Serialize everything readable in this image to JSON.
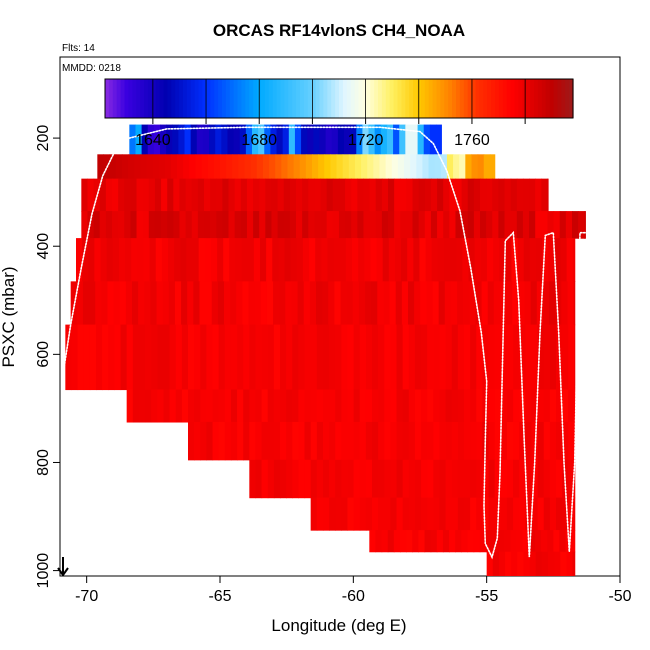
{
  "chart_data": {
    "type": "heatmap",
    "title": "ORCAS RF14vlonS CH4_NOAA",
    "flights_label": "Flts: 14",
    "date_label": "MMDD: 0218",
    "xlabel": "Longitude (deg E)",
    "ylabel": "PSXC (mbar)",
    "xlim": [
      -71,
      -50
    ],
    "ylim": [
      1010,
      50
    ],
    "x_ticks": [
      -70,
      -65,
      -60,
      -55,
      -50
    ],
    "x_tick_labels": [
      "-70",
      "-65",
      "-60",
      "-55",
      "-50"
    ],
    "y_ticks": [
      200,
      400,
      600,
      800,
      1000
    ],
    "y_tick_labels": [
      "200",
      "400",
      "600",
      "800",
      "1000"
    ],
    "colorbar": {
      "min": 1622,
      "max": 1798,
      "ticks": [
        1640,
        1680,
        1720,
        1760
      ],
      "tick_labels": [
        "1640",
        "1680",
        "1720",
        "1760"
      ],
      "segment_lines": [
        1640,
        1660,
        1680,
        1700,
        1720,
        1740,
        1760,
        1780
      ]
    },
    "colormap": [
      {
        "v": 1622,
        "c": "#8A2BE2"
      },
      {
        "v": 1630,
        "c": "#3A00E0"
      },
      {
        "v": 1645,
        "c": "#0000B0"
      },
      {
        "v": 1660,
        "c": "#0030FF"
      },
      {
        "v": 1680,
        "c": "#00AAFF"
      },
      {
        "v": 1700,
        "c": "#66D0FF"
      },
      {
        "v": 1712,
        "c": "#E0F6FF"
      },
      {
        "v": 1720,
        "c": "#FFFFE0"
      },
      {
        "v": 1730,
        "c": "#FFF060"
      },
      {
        "v": 1740,
        "c": "#FFC800"
      },
      {
        "v": 1752,
        "c": "#FF8000"
      },
      {
        "v": 1762,
        "c": "#FF3000"
      },
      {
        "v": 1775,
        "c": "#FF0000"
      },
      {
        "v": 1790,
        "c": "#C00000"
      },
      {
        "v": 1798,
        "c": "#9E1A1A"
      }
    ],
    "bands": [
      {
        "p_top": 175,
        "p_bot": 230,
        "x_min": -68.4,
        "x_max": -56.7,
        "profile": "upper"
      },
      {
        "p_top": 230,
        "p_bot": 275,
        "x_min": -69.6,
        "x_max": -54.7,
        "profile": "gradient"
      },
      {
        "p_top": 275,
        "p_bot": 335,
        "x_min": -70.2,
        "x_max": -52.7,
        "profile": "darkred"
      },
      {
        "p_top": 335,
        "p_bot": 385,
        "x_min": -70.2,
        "x_max": -51.3,
        "profile": "red1"
      },
      {
        "p_top": 385,
        "p_bot": 465,
        "x_min": -70.4,
        "x_max": -51.7,
        "profile": "red2"
      },
      {
        "p_top": 465,
        "p_bot": 545,
        "x_min": -70.6,
        "x_max": -51.7,
        "profile": "red2"
      },
      {
        "p_top": 545,
        "p_bot": 665,
        "x_min": -70.8,
        "x_max": -51.7,
        "profile": "red3"
      },
      {
        "p_top": 665,
        "p_bot": 725,
        "x_min": -68.5,
        "x_max": -51.7,
        "profile": "red3"
      },
      {
        "p_top": 725,
        "p_bot": 795,
        "x_min": -66.2,
        "x_max": -51.7,
        "profile": "red3"
      },
      {
        "p_top": 795,
        "p_bot": 865,
        "x_min": -63.9,
        "x_max": -51.7,
        "profile": "red3"
      },
      {
        "p_top": 865,
        "p_bot": 925,
        "x_min": -61.6,
        "x_max": -51.7,
        "profile": "red3"
      },
      {
        "p_top": 925,
        "p_bot": 965,
        "x_min": -59.4,
        "x_max": -51.7,
        "profile": "red3"
      },
      {
        "p_top": 965,
        "p_bot": 1010,
        "x_min": -55.0,
        "x_max": -51.7,
        "profile": "red3"
      }
    ],
    "upper_band_values": [
      [
        -68.4,
        1660
      ],
      [
        -68.1,
        1690
      ],
      [
        -67.9,
        1650
      ],
      [
        -67.7,
        1635
      ],
      [
        -67.4,
        1630
      ],
      [
        -67.1,
        1640
      ],
      [
        -66.8,
        1645
      ],
      [
        -66.5,
        1650
      ],
      [
        -66.2,
        1660
      ],
      [
        -65.9,
        1640
      ],
      [
        -65.6,
        1635
      ],
      [
        -65.3,
        1648
      ],
      [
        -65.0,
        1655
      ],
      [
        -64.7,
        1645
      ],
      [
        -64.4,
        1642
      ],
      [
        -64.1,
        1650
      ],
      [
        -63.8,
        1680
      ],
      [
        -63.5,
        1700
      ],
      [
        -63.2,
        1665
      ],
      [
        -62.9,
        1650
      ],
      [
        -62.6,
        1645
      ],
      [
        -62.3,
        1690
      ],
      [
        -62.0,
        1655
      ],
      [
        -61.7,
        1640
      ],
      [
        -61.4,
        1648
      ],
      [
        -61.1,
        1640
      ],
      [
        -60.8,
        1635
      ],
      [
        -60.5,
        1645
      ],
      [
        -60.2,
        1642
      ],
      [
        -59.9,
        1650
      ],
      [
        -59.6,
        1705
      ],
      [
        -59.3,
        1690
      ],
      [
        -59.0,
        1670
      ],
      [
        -58.7,
        1700
      ],
      [
        -58.4,
        1665
      ],
      [
        -58.1,
        1700
      ],
      [
        -57.8,
        1725
      ],
      [
        -57.5,
        1690
      ],
      [
        -57.2,
        1660
      ]
    ],
    "gradient_band_values": [
      [
        -69.6,
        1790
      ],
      [
        -69.0,
        1788
      ],
      [
        -68.0,
        1784
      ],
      [
        -67.0,
        1782
      ],
      [
        -66.0,
        1775
      ],
      [
        -65.0,
        1770
      ],
      [
        -64.0,
        1764
      ],
      [
        -63.0,
        1758
      ],
      [
        -62.0,
        1750
      ],
      [
        -61.0,
        1740
      ],
      [
        -60.0,
        1732
      ],
      [
        -59.0,
        1724
      ],
      [
        -58.0,
        1715
      ],
      [
        -57.0,
        1706
      ],
      [
        -56.6,
        1708
      ],
      [
        -56.3,
        1738
      ],
      [
        -56.0,
        1715
      ],
      [
        -55.7,
        1745
      ],
      [
        -55.3,
        1752
      ],
      [
        -55.0,
        1745
      ]
    ],
    "flight_track": [
      [
        -70.9,
        640
      ],
      [
        -70.6,
        545
      ],
      [
        -70.2,
        440
      ],
      [
        -69.8,
        340
      ],
      [
        -69.4,
        270
      ],
      [
        -68.9,
        220
      ],
      [
        -68.4,
        200
      ],
      [
        -67.0,
        183
      ],
      [
        -64.0,
        180
      ],
      [
        -61.0,
        180
      ],
      [
        -59.0,
        180
      ],
      [
        -57.5,
        188
      ],
      [
        -57.0,
        210
      ],
      [
        -56.5,
        260
      ],
      [
        -56.0,
        335
      ],
      [
        -55.6,
        440
      ],
      [
        -55.2,
        560
      ],
      [
        -55.0,
        650
      ],
      [
        -55.05,
        760
      ],
      [
        -55.1,
        880
      ],
      [
        -55.05,
        950
      ],
      [
        -54.8,
        975
      ],
      [
        -54.6,
        940
      ],
      [
        -54.5,
        820
      ],
      [
        -54.4,
        600
      ],
      [
        -54.3,
        390
      ],
      [
        -54.0,
        375
      ],
      [
        -53.8,
        500
      ],
      [
        -53.6,
        750
      ],
      [
        -53.4,
        975
      ],
      [
        -53.2,
        800
      ],
      [
        -53.0,
        560
      ],
      [
        -52.8,
        380
      ],
      [
        -52.5,
        375
      ],
      [
        -52.3,
        560
      ],
      [
        -52.1,
        800
      ],
      [
        -51.9,
        965
      ],
      [
        -51.7,
        800
      ],
      [
        -51.6,
        560
      ],
      [
        -51.5,
        375
      ],
      [
        -51.3,
        375
      ]
    ]
  }
}
